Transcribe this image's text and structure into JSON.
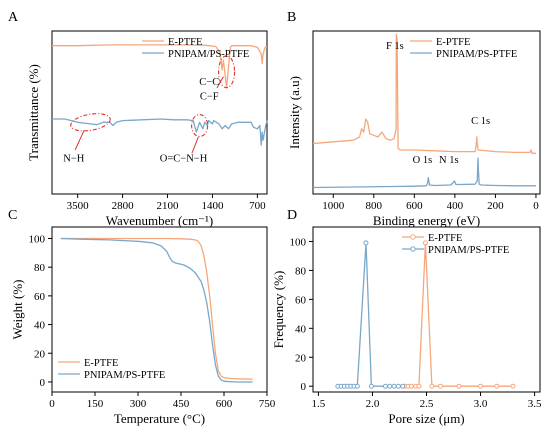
{
  "figure": {
    "panels": [
      "A",
      "B",
      "C",
      "D"
    ]
  },
  "colors": {
    "e_ptfe": "#F5A77A",
    "pnipam": "#7BA7C8",
    "annotation": "#E03030"
  },
  "chart_data": [
    {
      "panel": "A",
      "type": "line",
      "title": "",
      "xlabel": "Wavenumber (cm⁻¹)",
      "ylabel": "Transmittance (%)",
      "xlim": [
        3900,
        550
      ],
      "x_reversed": true,
      "y_ticks_visible": false,
      "x_ticks": [
        3500,
        2800,
        2100,
        1400,
        700
      ],
      "legend": {
        "position": "top-right",
        "entries": [
          "E-PTFE",
          "PNIPAM/PS-PTFE"
        ]
      },
      "series": [
        {
          "name": "E-PTFE",
          "color": "#F5A77A",
          "x": [
            3900,
            3500,
            3000,
            2500,
            2000,
            1800,
            1500,
            1350,
            1280,
            1250,
            1230,
            1200,
            1180,
            1150,
            1120,
            1100,
            1000,
            900,
            800,
            700,
            640,
            625,
            610,
            580,
            550
          ],
          "y": [
            91,
            91,
            91.5,
            91.5,
            91.5,
            91.5,
            91.2,
            90.5,
            87,
            76,
            82,
            72,
            65,
            78,
            90,
            91,
            91,
            91,
            91,
            90,
            86,
            80,
            86,
            90,
            90
          ]
        },
        {
          "name": "PNIPAM/PS-PTFE",
          "color": "#7BA7C8",
          "x": [
            3900,
            3700,
            3500,
            3400,
            3300,
            3200,
            3100,
            3000,
            2950,
            2900,
            2800,
            2500,
            2200,
            2000,
            1800,
            1700,
            1650,
            1600,
            1550,
            1520,
            1480,
            1460,
            1400,
            1380,
            1300,
            1250,
            1200,
            1150,
            1100,
            1000,
            900,
            800,
            760,
            700,
            660,
            640,
            625,
            610,
            580,
            550
          ],
          "y": [
            46,
            46,
            44,
            43.5,
            43,
            42.5,
            44,
            44,
            42,
            44,
            45,
            45.5,
            46,
            45.5,
            45.5,
            45,
            38,
            44,
            40,
            44,
            42,
            45,
            43,
            45,
            43,
            40,
            42,
            40,
            43,
            44,
            44,
            44,
            41,
            40,
            42,
            30,
            38,
            33,
            40,
            45
          ]
        }
      ],
      "annotations": [
        "C−C",
        "C−F",
        "N−H",
        "O=C−N−H"
      ]
    },
    {
      "panel": "B",
      "type": "line",
      "title": "",
      "xlabel": "Binding energy (eV)",
      "ylabel": "Intensity (a.u)",
      "xlim": [
        1100,
        -20
      ],
      "x_reversed": true,
      "y_ticks_visible": false,
      "x_ticks": [
        1000,
        800,
        600,
        400,
        200,
        0
      ],
      "legend": {
        "position": "top-right",
        "entries": [
          "E-PTFE",
          "PNIPAM/PS-PTFE"
        ]
      },
      "series": [
        {
          "name": "E-PTFE",
          "color": "#F5A77A",
          "x": [
            1100,
            1000,
            900,
            870,
            860,
            850,
            840,
            830,
            820,
            800,
            780,
            760,
            740,
            720,
            700,
            690,
            689,
            685,
            680,
            670,
            600,
            500,
            400,
            300,
            295,
            292,
            290,
            285,
            200,
            100,
            30,
            25,
            20,
            0
          ],
          "y": [
            31,
            32,
            33,
            35,
            40,
            38,
            46,
            44,
            37,
            36,
            35,
            38,
            34,
            33,
            34,
            40,
            98,
            95,
            28,
            27,
            27,
            26.5,
            26,
            26,
            30,
            35,
            31,
            27,
            26,
            25.5,
            25.5,
            27,
            25,
            25
          ]
        },
        {
          "name": "PNIPAM/PS-PTFE",
          "color": "#7BA7C8",
          "x": [
            1100,
            900,
            700,
            600,
            540,
            535,
            531,
            525,
            500,
            420,
            402,
            395,
            380,
            300,
            290,
            286,
            284,
            280,
            270,
            200,
            100,
            0
          ],
          "y": [
            4,
            4.3,
            4.6,
            4.8,
            5,
            6.5,
            10,
            5.5,
            5.2,
            5.5,
            8,
            5.8,
            5.8,
            6,
            8,
            22,
            15,
            6,
            5.5,
            5.2,
            5,
            5
          ]
        }
      ],
      "annotations": [
        "F 1s",
        "C 1s",
        "O 1s",
        "N 1s"
      ]
    },
    {
      "panel": "C",
      "type": "line",
      "title": "",
      "xlabel": "Temperature (°C)",
      "ylabel": "Weight (%)",
      "xlim": [
        0,
        750
      ],
      "ylim": [
        -7,
        108
      ],
      "x_ticks": [
        0,
        150,
        300,
        450,
        600,
        750
      ],
      "y_ticks": [
        0,
        20,
        40,
        60,
        80,
        100
      ],
      "legend": {
        "position": "bottom-left",
        "entries": [
          "E-PTFE",
          "PNIPAM/PS-PTFE"
        ]
      },
      "series": [
        {
          "name": "E-PTFE",
          "color": "#F5A77A",
          "x": [
            30,
            100,
            200,
            300,
            400,
            450,
            480,
            500,
            510,
            520,
            530,
            540,
            550,
            560,
            570,
            580,
            590,
            600,
            620,
            650,
            700
          ],
          "y": [
            100,
            100,
            100,
            100,
            100,
            99.8,
            99.5,
            99,
            98,
            95,
            88,
            76,
            60,
            40,
            20,
            8,
            4,
            3,
            2.5,
            2.2,
            2
          ]
        },
        {
          "name": "PNIPAM/PS-PTFE",
          "color": "#7BA7C8",
          "x": [
            30,
            100,
            200,
            300,
            350,
            380,
            400,
            410,
            420,
            430,
            440,
            450,
            460,
            480,
            500,
            520,
            530,
            540,
            550,
            560,
            570,
            580,
            590,
            600,
            620,
            650,
            700
          ],
          "y": [
            100,
            99.5,
            99,
            98,
            97,
            95,
            91,
            87,
            84,
            83,
            82.5,
            82,
            81.5,
            79.5,
            76,
            70,
            64,
            55,
            42,
            26,
            12,
            4,
            1.5,
            0.5,
            0.2,
            0,
            0
          ]
        }
      ]
    },
    {
      "panel": "D",
      "type": "line",
      "title": "",
      "xlabel": "Pore size (μm)",
      "ylabel": "Frequency (%)",
      "xlim": [
        1.45,
        3.55
      ],
      "ylim": [
        -4,
        110
      ],
      "x_ticks": [
        1.5,
        2.0,
        2.5,
        3.0,
        3.5
      ],
      "y_ticks": [
        0,
        20,
        40,
        60,
        80,
        100
      ],
      "legend": {
        "position": "top-right",
        "entries": [
          "E-PTFE",
          "PNIPAM/PS-PTFE"
        ]
      },
      "series": [
        {
          "name": "E-PTFE",
          "color": "#F5A77A",
          "x": [
            2.3,
            2.33,
            2.36,
            2.4,
            2.43,
            2.49,
            2.55,
            2.63,
            2.8,
            3.0,
            3.15,
            3.3
          ],
          "y": [
            0,
            0,
            0,
            0,
            0,
            99,
            0,
            0,
            0,
            0,
            0,
            0
          ]
        },
        {
          "name": "PNIPAM/PS-PTFE",
          "color": "#7BA7C8",
          "x": [
            1.68,
            1.71,
            1.74,
            1.77,
            1.8,
            1.83,
            1.86,
            1.94,
            1.99,
            2.12,
            2.16,
            2.2,
            2.24,
            2.28
          ],
          "y": [
            0,
            0,
            0,
            0,
            0,
            0,
            0,
            99,
            0,
            0,
            0,
            0,
            0,
            0
          ]
        }
      ]
    }
  ]
}
